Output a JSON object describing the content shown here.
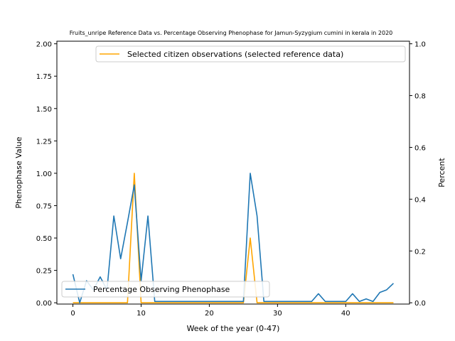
{
  "chart_data": {
    "type": "line",
    "title": "Fruits_unripe Reference Data vs. Percentage Observing Phenophase for Jamun-Syzygium cumini in kerala in 2020",
    "xlabel": "Week of the year (0-47)",
    "ylabel_left": "Phenophase Value",
    "ylabel_right": "Percent",
    "xlim": [
      -2.35,
      49.35
    ],
    "ylim_left": [
      -0.01,
      2.02
    ],
    "ylim_right": [
      -0.005,
      1.01
    ],
    "x_ticks": [
      0,
      10,
      20,
      30,
      40
    ],
    "y_ticks_left": [
      0.0,
      0.25,
      0.5,
      0.75,
      1.0,
      1.25,
      1.5,
      1.75,
      2.0
    ],
    "y_tick_labels_left": [
      "0.00",
      "0.25",
      "0.50",
      "0.75",
      "1.00",
      "1.25",
      "1.50",
      "1.75",
      "2.00"
    ],
    "y_ticks_right": [
      0.0,
      0.2,
      0.4,
      0.6,
      0.8,
      1.0
    ],
    "y_tick_labels_right": [
      "0.0",
      "0.2",
      "0.4",
      "0.6",
      "0.8",
      "1.0"
    ],
    "grid": false,
    "series": [
      {
        "name": "Selected citizen observations (selected reference data)",
        "axis": "left",
        "color": "#ffa500",
        "legend_position": "upper-right",
        "x": [
          0,
          1,
          2,
          3,
          4,
          5,
          6,
          7,
          8,
          9,
          10,
          11,
          12,
          13,
          14,
          15,
          16,
          17,
          18,
          19,
          20,
          21,
          22,
          23,
          24,
          25,
          26,
          27,
          28,
          29,
          30,
          31,
          32,
          33,
          34,
          35,
          36,
          37,
          38,
          39,
          40,
          41,
          42,
          43,
          44,
          45,
          46,
          47
        ],
        "values": [
          0,
          0,
          0,
          0,
          0,
          0,
          0,
          0,
          0,
          1.0,
          0,
          0,
          0,
          0,
          0,
          0,
          0,
          0,
          0,
          0,
          0,
          0,
          0,
          0,
          0,
          0,
          0.5,
          0,
          0,
          0,
          0,
          0,
          0,
          0,
          0,
          0,
          0,
          0,
          0,
          0,
          0,
          0,
          0,
          0,
          0,
          0,
          0,
          0
        ]
      },
      {
        "name": "Percentage Observing Phenophase",
        "axis": "right",
        "color": "#1f77b4",
        "legend_position": "lower-left",
        "x": [
          0,
          1,
          2,
          3,
          4,
          5,
          6,
          7,
          8,
          9,
          10,
          11,
          12,
          13,
          14,
          15,
          16,
          17,
          18,
          19,
          20,
          21,
          22,
          23,
          24,
          25,
          26,
          27,
          28,
          29,
          30,
          31,
          32,
          33,
          34,
          35,
          36,
          37,
          38,
          39,
          40,
          41,
          42,
          43,
          44,
          45,
          46,
          47
        ],
        "values": [
          0.11,
          0.0,
          0.085,
          0.05,
          0.1,
          0.05,
          0.335,
          0.17,
          0.31,
          0.455,
          0.085,
          0.335,
          0.005,
          0.005,
          0.005,
          0.005,
          0.005,
          0.005,
          0.005,
          0.005,
          0.005,
          0.005,
          0.005,
          0.005,
          0.005,
          0.005,
          0.5,
          0.335,
          0.005,
          0.005,
          0.005,
          0.005,
          0.005,
          0.005,
          0.005,
          0.005,
          0.035,
          0.005,
          0.005,
          0.005,
          0.005,
          0.035,
          0.005,
          0.015,
          0.005,
          0.04,
          0.05,
          0.075
        ]
      }
    ]
  }
}
